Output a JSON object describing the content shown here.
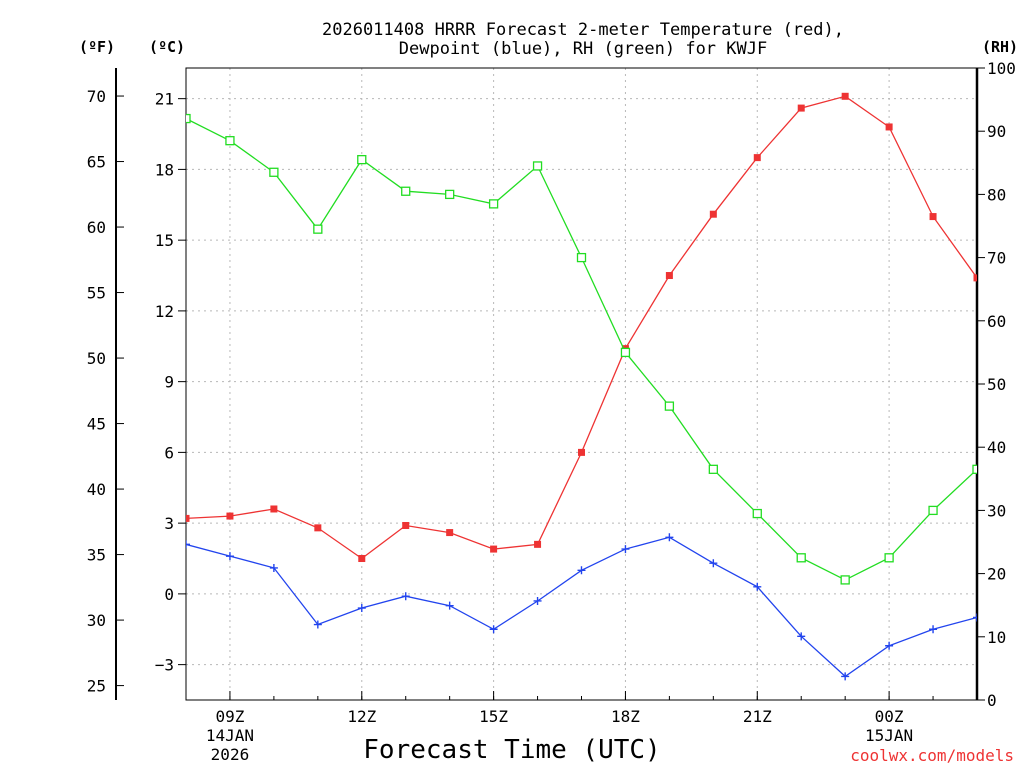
{
  "chart_data": {
    "type": "line",
    "title_line1": "2026011408 HRRR Forecast 2-meter Temperature (red),",
    "title_line2": "Dewpoint (blue), RH (green) for KWJF",
    "xlabel": "Forecast Time (UTC)",
    "credit": "coolwx.com/models",
    "units": {
      "fahrenheit": "(ºF)",
      "celsius": "(ºC)",
      "rh": "(RH)"
    },
    "x_hours": [
      8,
      9,
      10,
      11,
      12,
      13,
      14,
      15,
      16,
      17,
      18,
      19,
      20,
      21,
      22,
      23,
      24,
      25,
      26
    ],
    "x_ticks": [
      {
        "hour": 9,
        "label": "09Z",
        "date": "14JAN",
        "year": "2026"
      },
      {
        "hour": 12,
        "label": "12Z",
        "date": "",
        "year": ""
      },
      {
        "hour": 15,
        "label": "15Z",
        "date": "",
        "year": ""
      },
      {
        "hour": 18,
        "label": "18Z",
        "date": "",
        "year": ""
      },
      {
        "hour": 21,
        "label": "21Z",
        "date": "",
        "year": ""
      },
      {
        "hour": 24,
        "label": "00Z",
        "date": "15JAN",
        "year": ""
      }
    ],
    "xlim": [
      8,
      26
    ],
    "celsius_ticks": [
      "21",
      "18",
      "15",
      "12",
      "9",
      "6",
      "3",
      "0",
      "−3"
    ],
    "celsius_tick_values": [
      21,
      18,
      15,
      12,
      9,
      6,
      3,
      0,
      -3
    ],
    "fahrenheit_ticks": [
      "70",
      "65",
      "60",
      "55",
      "50",
      "45",
      "40",
      "35",
      "30",
      "25"
    ],
    "fahrenheit_tick_values": [
      70,
      65,
      60,
      55,
      50,
      45,
      40,
      35,
      30,
      25
    ],
    "rh_ticks": [
      "100",
      "90",
      "80",
      "70",
      "60",
      "50",
      "40",
      "30",
      "20",
      "10",
      "0"
    ],
    "rh_tick_values": [
      100,
      90,
      80,
      70,
      60,
      50,
      40,
      30,
      20,
      10,
      0
    ],
    "temp_ylim_celsius": [
      -4.5,
      22.3
    ],
    "rh_ylim": [
      0,
      100
    ],
    "series": [
      {
        "name": "2-meter Temperature",
        "axis": "celsius",
        "color": "#ee3333",
        "marker": "filled-square",
        "values": [
          3.2,
          3.3,
          3.6,
          2.8,
          1.5,
          2.9,
          2.6,
          1.9,
          2.1,
          6.0,
          10.4,
          13.5,
          16.1,
          18.5,
          20.6,
          21.1,
          19.8,
          16.0,
          13.4
        ]
      },
      {
        "name": "Dewpoint",
        "axis": "celsius",
        "color": "#2244ee",
        "marker": "plus",
        "values": [
          2.1,
          1.6,
          1.1,
          -1.3,
          -0.6,
          -0.1,
          -0.5,
          -1.5,
          -0.3,
          1.0,
          1.9,
          2.4,
          1.3,
          0.3,
          -1.8,
          -3.5,
          -2.2,
          -1.5,
          -1.0
        ]
      },
      {
        "name": "Relative Humidity",
        "axis": "rh",
        "color": "#22dd22",
        "marker": "open-square",
        "values": [
          92,
          88.5,
          83.5,
          74.5,
          85.5,
          80.5,
          80,
          78.5,
          84.5,
          70,
          55,
          46.5,
          36.5,
          29.5,
          22.5,
          19,
          22.5,
          30,
          36.5
        ]
      }
    ]
  }
}
